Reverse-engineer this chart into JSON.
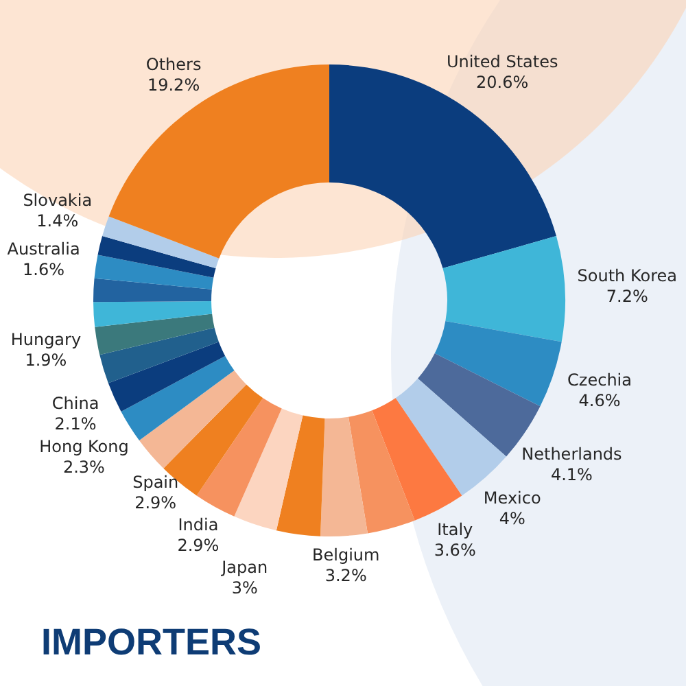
{
  "chart_data": {
    "type": "donut",
    "title": "IMPORTERS",
    "categories": [
      "United States",
      "South Korea",
      "Czechia",
      "Netherlands",
      "Mexico",
      "Italy",
      null,
      "Belgium",
      null,
      "Japan",
      "India",
      "Spain",
      null,
      "Hong Kong",
      "China",
      null,
      "Hungary",
      null,
      null,
      "Australia",
      null,
      "Slovakia",
      "Others"
    ],
    "values": [
      20.6,
      7.2,
      4.6,
      4.1,
      4,
      3.6,
      3.3,
      3.2,
      3.0,
      3,
      2.9,
      2.9,
      2.5,
      2.3,
      2.1,
      2.0,
      1.9,
      1.7,
      1.6,
      1.6,
      1.3,
      1.4,
      19.2
    ],
    "value_labels": [
      "20.6%",
      "7.2%",
      "4.6%",
      "4.1%",
      "4%",
      "3.6%",
      null,
      "3.2%",
      null,
      "3%",
      "2.9%",
      "2.9%",
      null,
      "2.3%",
      "2.1%",
      null,
      "1.9%",
      null,
      null,
      "1.6%",
      null,
      "1.4%",
      "19.2%"
    ],
    "colors": [
      "#0b3d7e",
      "#3fb6d8",
      "#2d8cc3",
      "#4d6a9b",
      "#b2cdea",
      "#fd7941",
      "#f6925f",
      "#f4b795",
      "#ef8020",
      "#fcd5c0",
      "#f6925f",
      "#ef8020",
      "#f4b795",
      "#2d8cc3",
      "#0b3d7e",
      "#21608d",
      "#3b797c",
      "#3fb6d8",
      "#2263a0",
      "#2d8cc3",
      "#0b3d7e",
      "#b2cdea",
      "#ef8020"
    ]
  }
}
